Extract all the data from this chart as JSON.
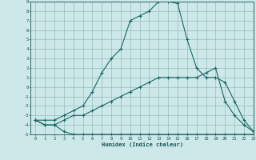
{
  "xlabel": "Humidex (Indice chaleur)",
  "bg_color": "#cce8e8",
  "grid_color": "#99bbbb",
  "line_color": "#1a6666",
  "xlim": [
    -0.5,
    23
  ],
  "ylim": [
    -5,
    9
  ],
  "xticks": [
    0,
    1,
    2,
    3,
    4,
    5,
    6,
    7,
    8,
    9,
    10,
    11,
    12,
    13,
    14,
    15,
    16,
    17,
    18,
    19,
    20,
    21,
    22,
    23
  ],
  "yticks": [
    9,
    8,
    7,
    6,
    5,
    4,
    3,
    2,
    1,
    0,
    -1,
    -2,
    -3,
    -4,
    -5
  ],
  "line1_x": [
    0,
    1,
    2,
    3,
    4,
    5,
    6,
    7,
    8,
    9,
    10,
    11,
    12,
    13,
    14,
    15,
    16,
    17,
    18,
    19,
    20,
    21,
    22,
    23
  ],
  "line1_y": [
    -3.5,
    -4,
    -4,
    -4.7,
    -5,
    -5,
    -5,
    -5,
    -5,
    -5,
    -5,
    -5,
    -5,
    -5,
    -5,
    -5,
    -5,
    -5,
    -5,
    -5,
    -5,
    -5,
    -5,
    -5
  ],
  "line2_x": [
    0,
    1,
    2,
    3,
    4,
    5,
    6,
    7,
    8,
    9,
    10,
    11,
    12,
    13,
    14,
    15,
    16,
    17,
    18,
    19,
    20,
    21,
    22,
    23
  ],
  "line2_y": [
    -3.5,
    -4,
    -4,
    -3.5,
    -3,
    -3,
    -2.5,
    -2,
    -1.5,
    -1,
    -0.5,
    0,
    0.5,
    1,
    1,
    1,
    1,
    1,
    1.5,
    2,
    -1.5,
    -3,
    -4,
    -4.7
  ],
  "line3_x": [
    0,
    1,
    2,
    3,
    4,
    5,
    6,
    7,
    8,
    9,
    10,
    11,
    12,
    13,
    14,
    15,
    16,
    17,
    18,
    19,
    20,
    21,
    22,
    23
  ],
  "line3_y": [
    -3.5,
    -3.5,
    -3.5,
    -3,
    -2.5,
    -2,
    -0.5,
    1.5,
    3,
    4,
    7,
    7.5,
    8,
    9,
    9,
    8.8,
    5,
    2,
    1,
    1,
    0.5,
    -1.5,
    -3.5,
    -4.7
  ]
}
